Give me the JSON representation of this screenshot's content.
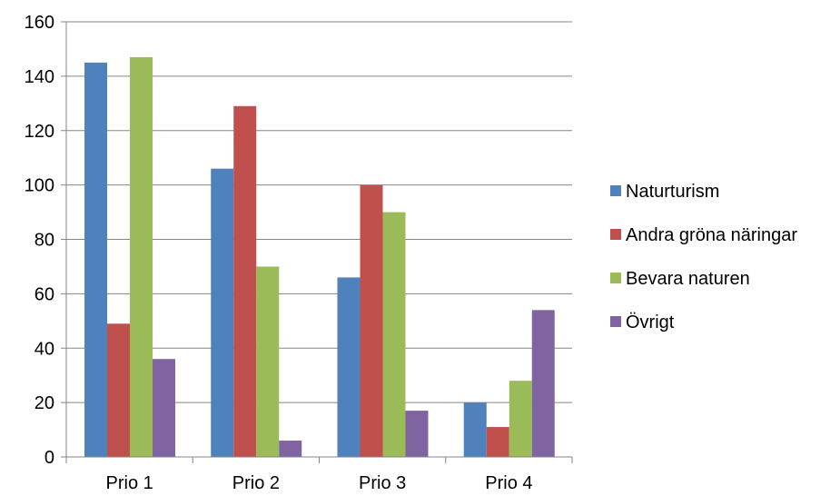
{
  "chart_data": {
    "type": "bar",
    "title": "",
    "xlabel": "",
    "ylabel": "",
    "categories": [
      "Prio 1",
      "Prio 2",
      "Prio 3",
      "Prio 4"
    ],
    "ylim": [
      0,
      160
    ],
    "yticks": [
      0,
      20,
      40,
      60,
      80,
      100,
      120,
      140,
      160
    ],
    "grid": true,
    "legend_position": "right",
    "series": [
      {
        "name": "Naturturism",
        "color": "#4f81bd",
        "values": [
          145,
          106,
          66,
          20
        ]
      },
      {
        "name": "Andra gröna näringar",
        "color": "#c0504d",
        "values": [
          49,
          129,
          100,
          11
        ]
      },
      {
        "name": "Bevara naturen",
        "color": "#9bbb59",
        "values": [
          147,
          70,
          90,
          28
        ]
      },
      {
        "name": "Övrigt",
        "color": "#8064a2",
        "values": [
          36,
          6,
          17,
          54
        ]
      }
    ]
  }
}
